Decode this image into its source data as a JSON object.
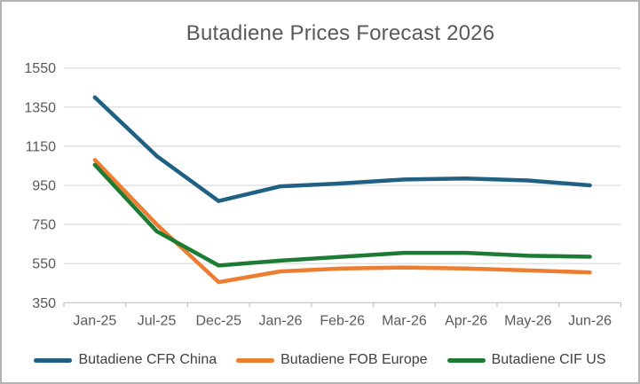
{
  "window": {
    "background": "#ffffff",
    "border_color": "#b3b3b3"
  },
  "chart_data": {
    "type": "line",
    "title": "Butadiene Prices Forecast 2026",
    "xlabel": "",
    "ylabel": "",
    "categories": [
      "Jan-25",
      "Jul-25",
      "Dec-25",
      "Jan-26",
      "Feb-26",
      "Mar-26",
      "Apr-26",
      "May-26",
      "Jun-26"
    ],
    "series": [
      {
        "name": "Butadiene CFR China",
        "color": "#1f6083",
        "values": [
          1400,
          1100,
          870,
          945,
          960,
          980,
          985,
          975,
          950
        ]
      },
      {
        "name": "Butadiene FOB Europe",
        "color": "#ed7d31",
        "values": [
          1080,
          750,
          455,
          510,
          525,
          530,
          525,
          515,
          505
        ]
      },
      {
        "name": "Butadiene CIF US",
        "color": "#1e7b34",
        "values": [
          1055,
          715,
          540,
          565,
          585,
          605,
          605,
          590,
          585
        ]
      }
    ],
    "ylim": [
      350,
      1550
    ],
    "yticks": [
      350,
      550,
      750,
      950,
      1150,
      1350,
      1550
    ],
    "grid": true,
    "legend_position": "bottom"
  },
  "styles": {
    "title_color": "#595959",
    "axis_label_color": "#595959",
    "legend_text_color": "#404040",
    "gridline_color": "#d9d9d9",
    "axis_line_color": "#bfbfbf",
    "line_width": 4.5
  }
}
